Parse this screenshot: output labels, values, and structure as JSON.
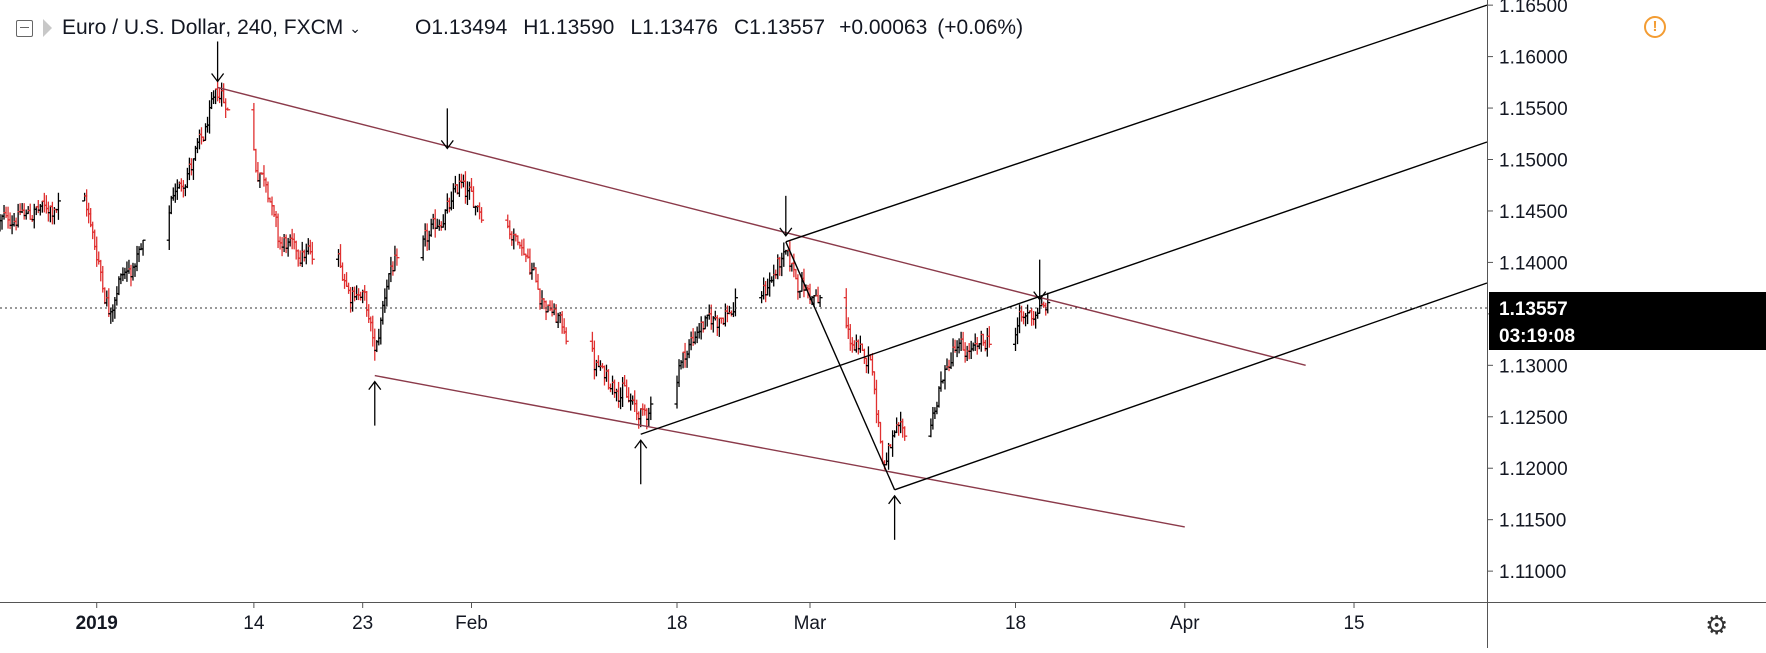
{
  "legend": {
    "symbol": "Euro / U.S. Dollar",
    "interval": "240",
    "exchange": "FXCM",
    "open_label": "O",
    "open": "1.13494",
    "high_label": "H",
    "high": "1.13590",
    "low_label": "L",
    "low": "1.13476",
    "close_label": "C",
    "close": "1.13557",
    "change": "+0.00063",
    "change_pct": "(+0.06%)"
  },
  "colors": {
    "up": "#000000",
    "down": "#e03131",
    "channel": "#8b3a4a",
    "fork": "#000000",
    "axis_text": "#131722"
  },
  "icons": [
    "collapse-icon",
    "symbol-flag-icon",
    "chevron-down-icon",
    "alert-icon",
    "settings-gear-icon",
    "arrow-down-icon",
    "arrow-up-icon"
  ],
  "chart_data": {
    "type": "candlestick",
    "symbol": "EUR/USD",
    "ylim": [
      1.107,
      1.1655
    ],
    "y_ticks": [
      "1.16500",
      "1.16000",
      "1.15500",
      "1.15000",
      "1.14500",
      "1.14000",
      "1.13500",
      "1.13000",
      "1.12500",
      "1.12000",
      "1.11500",
      "1.11000"
    ],
    "x_range": [
      "2018-12-24",
      "2019-04-26"
    ],
    "x_ticks": [
      {
        "date": "2019-01-01",
        "label": "2019"
      },
      {
        "date": "2019-01-14",
        "label": "14"
      },
      {
        "date": "2019-01-23",
        "label": "23"
      },
      {
        "date": "2019-02-01",
        "label": "Feb"
      },
      {
        "date": "2019-02-18",
        "label": "18"
      },
      {
        "date": "2019-03-01",
        "label": "Mar"
      },
      {
        "date": "2019-03-18",
        "label": "18"
      },
      {
        "date": "2019-04-01",
        "label": "Apr"
      },
      {
        "date": "2019-04-15",
        "label": "15"
      }
    ],
    "last_price": "1.13557",
    "countdown": "03:19:08",
    "price_path": [
      [
        "2018-12-24",
        1.144
      ],
      [
        "2018-12-27",
        1.145
      ],
      [
        "2018-12-31",
        1.146
      ],
      [
        "2019-01-02",
        1.135
      ],
      [
        "2019-01-03",
        1.139
      ],
      [
        "2019-01-04",
        1.1395
      ],
      [
        "2019-01-07",
        1.146
      ],
      [
        "2019-01-09",
        1.15
      ],
      [
        "2019-01-10",
        1.153
      ],
      [
        "2019-01-11",
        1.157
      ],
      [
        "2019-01-14",
        1.149
      ],
      [
        "2019-01-15",
        1.148
      ],
      [
        "2019-01-16",
        1.142
      ],
      [
        "2019-01-18",
        1.141
      ],
      [
        "2019-01-21",
        1.14
      ],
      [
        "2019-01-22",
        1.137
      ],
      [
        "2019-01-23",
        1.137
      ],
      [
        "2019-01-24",
        1.131
      ],
      [
        "2019-01-25",
        1.139
      ],
      [
        "2019-01-28",
        1.142
      ],
      [
        "2019-01-30",
        1.145
      ],
      [
        "2019-01-31",
        1.148
      ],
      [
        "2019-02-01",
        1.146
      ],
      [
        "2019-02-05",
        1.142
      ],
      [
        "2019-02-07",
        1.136
      ],
      [
        "2019-02-11",
        1.13
      ],
      [
        "2019-02-13",
        1.128
      ],
      [
        "2019-02-15",
        1.125
      ],
      [
        "2019-02-18",
        1.13
      ],
      [
        "2019-02-20",
        1.134
      ],
      [
        "2019-02-22",
        1.135
      ],
      [
        "2019-02-25",
        1.137
      ],
      [
        "2019-02-27",
        1.141
      ],
      [
        "2019-02-28",
        1.138
      ],
      [
        "2019-03-01",
        1.137
      ],
      [
        "2019-03-04",
        1.133
      ],
      [
        "2019-03-05",
        1.131
      ],
      [
        "2019-03-06",
        1.131
      ],
      [
        "2019-03-07",
        1.12
      ],
      [
        "2019-03-08",
        1.123
      ],
      [
        "2019-03-11",
        1.125
      ],
      [
        "2019-03-12",
        1.129
      ],
      [
        "2019-03-13",
        1.132
      ],
      [
        "2019-03-14",
        1.131
      ],
      [
        "2019-03-15",
        1.132
      ],
      [
        "2019-03-18",
        1.134
      ],
      [
        "2019-03-19",
        1.135
      ],
      [
        "2019-03-20",
        1.1356
      ]
    ],
    "trendlines": [
      {
        "role": "channel",
        "from": [
          "2019-01-11",
          1.157
        ],
        "to": [
          "2019-04-11",
          1.13
        ]
      },
      {
        "role": "channel",
        "from": [
          "2019-01-24",
          1.129
        ],
        "to": [
          "2019-04-01",
          1.1143
        ]
      },
      {
        "role": "fork",
        "from": [
          "2019-02-27",
          1.142
        ],
        "to": [
          "2019-03-08",
          1.1179
        ]
      },
      {
        "role": "fork",
        "from": [
          "2019-02-27",
          1.142
        ],
        "to": [
          "2019-04-26",
          1.165
        ]
      },
      {
        "role": "fork",
        "from": [
          "2019-02-15",
          1.1233
        ],
        "to": [
          "2019-04-26",
          1.1517
        ]
      },
      {
        "role": "fork",
        "from": [
          "2019-03-08",
          1.1179
        ],
        "to": [
          "2019-04-26",
          1.138
        ]
      }
    ],
    "arrows": [
      {
        "direction": "down",
        "date": "2019-01-11",
        "value": 1.157
      },
      {
        "direction": "down",
        "date": "2019-01-30",
        "value": 1.1505
      },
      {
        "direction": "down",
        "date": "2019-02-27",
        "value": 1.142
      },
      {
        "direction": "down",
        "date": "2019-03-20",
        "value": 1.1358
      },
      {
        "direction": "up",
        "date": "2019-01-24",
        "value": 1.129
      },
      {
        "direction": "up",
        "date": "2019-02-15",
        "value": 1.1233
      },
      {
        "direction": "up",
        "date": "2019-03-08",
        "value": 1.1179
      }
    ]
  }
}
